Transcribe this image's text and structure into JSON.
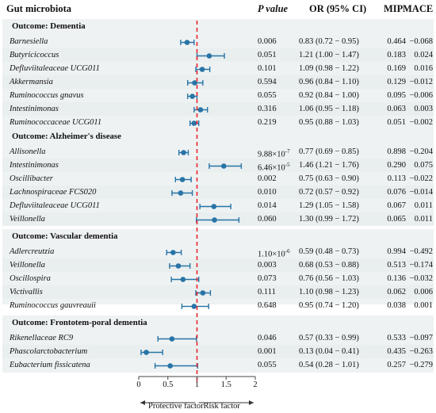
{
  "headers": {
    "microbiota": "Gut microbiota",
    "pvalue": "P value",
    "or": "OR (95% CI)",
    "mip": "MIP",
    "mace": "MACE"
  },
  "colors": {
    "point": "#2874a6",
    "reference_line": "#e8262a"
  },
  "axis": {
    "ticks": [
      "0",
      "0.5",
      "1",
      "1.5",
      "2"
    ],
    "left_label": "Protective factor",
    "right_label": "Risk factor"
  },
  "chart_data": {
    "type": "forest",
    "reference_line": 1,
    "xlim": [
      0,
      2
    ],
    "x_ticks": [
      0,
      0.5,
      1,
      1.5,
      2
    ],
    "groups": [
      {
        "outcome": "Outcome: Dementia",
        "rows": [
          {
            "name": "Barnesiella",
            "p": "0.006",
            "or_text": "0.83 (0.72 − 0.95)",
            "or": 0.83,
            "lo": 0.72,
            "hi": 0.95,
            "mip": "0.464",
            "mace": "−0.068"
          },
          {
            "name": "Butyricicoccus",
            "p": "0.051",
            "or_text": "1.21 (1.00 − 1.47)",
            "or": 1.21,
            "lo": 1.0,
            "hi": 1.47,
            "mip": "0.183",
            "mace": "0.024"
          },
          {
            "name": "Defluviitaleaceae UCG011",
            "p": "0.101",
            "or_text": "1.09 (0.98 − 1.22)",
            "or": 1.09,
            "lo": 0.98,
            "hi": 1.22,
            "mip": "0.169",
            "mace": "0.016"
          },
          {
            "name": "Akkermansia",
            "p": "0.594",
            "or_text": "0.96 (0.84 − 1.10)",
            "or": 0.96,
            "lo": 0.84,
            "hi": 1.1,
            "mip": "0.129",
            "mace": "−0.012"
          },
          {
            "name": "Ruminococcus gnavus",
            "p": "0.055",
            "or_text": "0.92 (0.84 − 1.00)",
            "or": 0.92,
            "lo": 0.84,
            "hi": 1.0,
            "mip": "0.095",
            "mace": "−0.006"
          },
          {
            "name": "Intestinimonas",
            "p": "0.316",
            "or_text": "1.06 (0.95 − 1.18)",
            "or": 1.06,
            "lo": 0.95,
            "hi": 1.18,
            "mip": "0.063",
            "mace": "0.003"
          },
          {
            "name": "Ruminococcaceae UCG011",
            "p": "0.219",
            "or_text": "0.95 (0.88 − 1.03)",
            "or": 0.95,
            "lo": 0.88,
            "hi": 1.03,
            "mip": "0.051",
            "mace": "−0.002"
          }
        ]
      },
      {
        "outcome": "Outcome: Alzheimer's disease",
        "rows": [
          {
            "name": "Allisonella",
            "p_base": "9.88×10",
            "p_exp": "-7",
            "or_text": "0.77 (0.69 − 0.85)",
            "or": 0.77,
            "lo": 0.69,
            "hi": 0.85,
            "mip": "0.898",
            "mace": "−0.204"
          },
          {
            "name": "Intestinimonas",
            "p_base": "6.46×10",
            "p_exp": "-5",
            "or_text": "1.46 (1.21 − 1.76)",
            "or": 1.46,
            "lo": 1.21,
            "hi": 1.76,
            "mip": "0.290",
            "mace": "0.075"
          },
          {
            "name": "Oscillibacter",
            "p": "0.002",
            "or_text": "0.75 (0.63 − 0.90)",
            "or": 0.75,
            "lo": 0.63,
            "hi": 0.9,
            "mip": "0.113",
            "mace": "−0.022"
          },
          {
            "name": "Lachnospiraceae FCS020",
            "p": "0.010",
            "or_text": "0.72 (0.57 − 0.92)",
            "or": 0.72,
            "lo": 0.57,
            "hi": 0.92,
            "mip": "0.076",
            "mace": "−0.014"
          },
          {
            "name": "Defluviitaleaceae UCG011",
            "p": "0.014",
            "or_text": "1.29 (1.05 − 1.58)",
            "or": 1.29,
            "lo": 1.05,
            "hi": 1.58,
            "mip": "0.067",
            "mace": "0.011"
          },
          {
            "name": "Veillonella",
            "p": "0.060",
            "or_text": "1.30 (0.99 − 1.72)",
            "or": 1.3,
            "lo": 0.99,
            "hi": 1.72,
            "mip": "0.065",
            "mace": "0.011"
          }
        ]
      },
      {
        "outcome": "Outcome: Vascular dementia",
        "rows": [
          {
            "name": "Adlercreutzia",
            "p_base": "1.10×10",
            "p_exp": "-6",
            "or_text": "0.59 (0.48 − 0.73)",
            "or": 0.59,
            "lo": 0.48,
            "hi": 0.73,
            "mip": "0.994",
            "mace": "−0.492"
          },
          {
            "name": "Veillonella",
            "p": "0.003",
            "or_text": "0.68 (0.53 − 0.88)",
            "or": 0.68,
            "lo": 0.53,
            "hi": 0.88,
            "mip": "0.513",
            "mace": "−0.174"
          },
          {
            "name": "Oscillospira",
            "p": "0.073",
            "or_text": "0.76 (0.56 − 1.03)",
            "or": 0.76,
            "lo": 0.56,
            "hi": 1.03,
            "mip": "0.136",
            "mace": "−0.032"
          },
          {
            "name": "Victivallis",
            "p": "0.111",
            "or_text": "1.10 (0.98 − 1.23)",
            "or": 1.1,
            "lo": 0.98,
            "hi": 1.23,
            "mip": "0.062",
            "mace": "0.006"
          },
          {
            "name": "Ruminococcus gauvreauii",
            "p": "0.648",
            "or_text": "0.95 (0.74 − 1.20)",
            "or": 0.95,
            "lo": 0.74,
            "hi": 1.2,
            "mip": "0.038",
            "mace": "0.001"
          }
        ]
      },
      {
        "outcome": "Outcome: Frontotem-poral dementia",
        "rows": [
          {
            "name": "Rikenellaceae RC9",
            "p": "0.046",
            "or_text": "0.57 (0.33 − 0.99)",
            "or": 0.57,
            "lo": 0.33,
            "hi": 0.99,
            "mip": "0.533",
            "mace": "−0.097"
          },
          {
            "name": "Phascolarctobacterium",
            "p": "0.001",
            "or_text": "0.13 (0.04 − 0.41)",
            "or": 0.13,
            "lo": 0.04,
            "hi": 0.41,
            "mip": "0.435",
            "mace": "−0.263"
          },
          {
            "name": "Eubacterium fissicatena",
            "p": "0.055",
            "or_text": "0.54 (0.28 − 1.01)",
            "or": 0.54,
            "lo": 0.28,
            "hi": 1.01,
            "mip": "0.257",
            "mace": "−0.279"
          }
        ]
      }
    ]
  }
}
